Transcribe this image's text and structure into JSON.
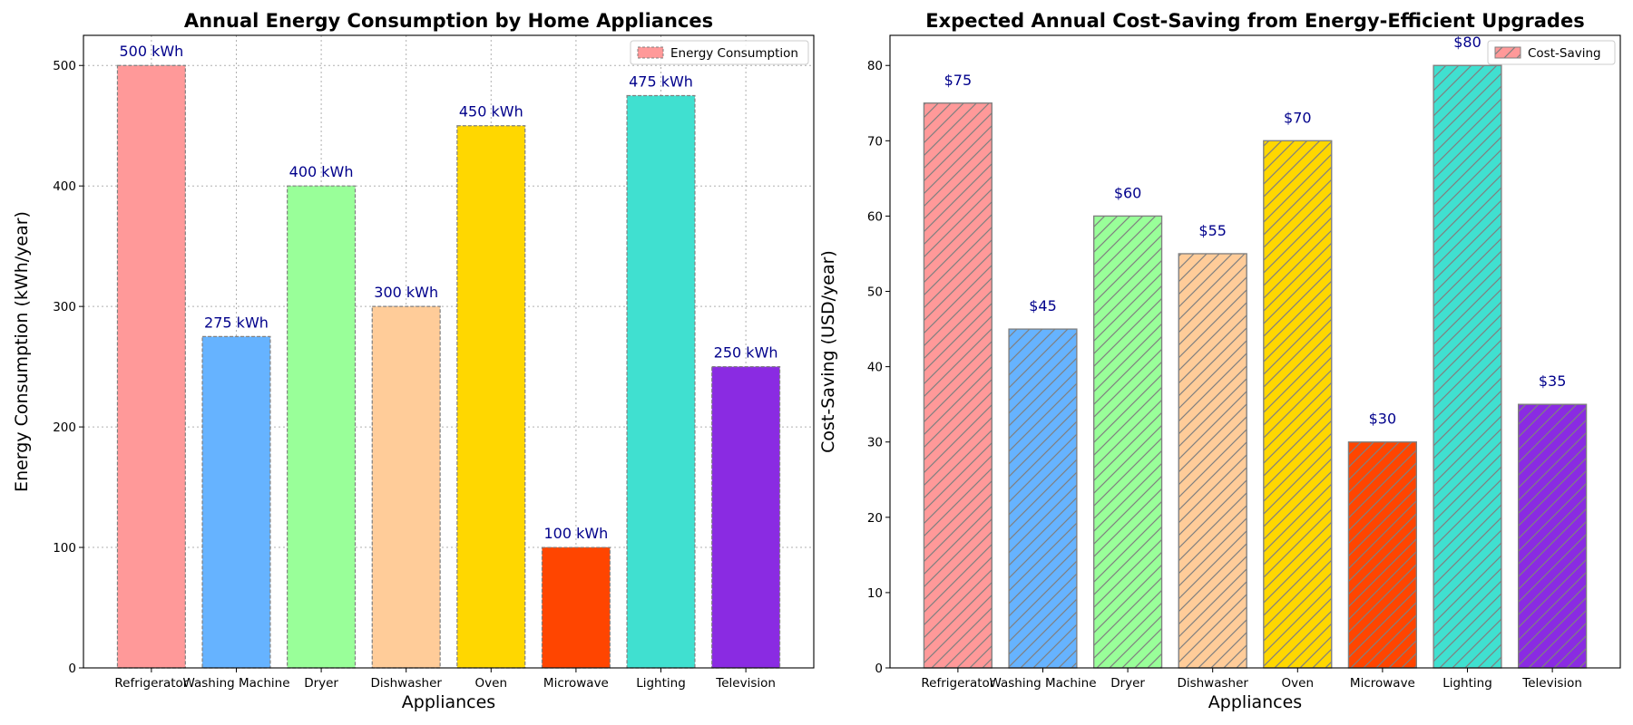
{
  "chart_data": [
    {
      "type": "bar",
      "title": "Annual Energy Consumption by Home Appliances",
      "xlabel": "Appliances",
      "ylabel": "Energy Consumption (kWh/year)",
      "categories": [
        "Refrigerator",
        "Washing Machine",
        "Dryer",
        "Dishwasher",
        "Oven",
        "Microwave",
        "Lighting",
        "Television"
      ],
      "series": [
        {
          "name": "Energy Consumption",
          "values": [
            500,
            275,
            400,
            300,
            450,
            100,
            475,
            250
          ],
          "labels": [
            "500 kWh",
            "275 kWh",
            "400 kWh",
            "300 kWh",
            "450 kWh",
            "100 kWh",
            "475 kWh",
            "250 kWh"
          ]
        }
      ],
      "colors": [
        "#ff9999",
        "#66b3ff",
        "#99ff99",
        "#ffcc99",
        "#ffd700",
        "#ff4500",
        "#40e0d0",
        "#8a2be2"
      ],
      "yticks": [
        0,
        100,
        200,
        300,
        400,
        500
      ],
      "ylim": [
        0,
        525
      ],
      "grid": true,
      "bar_edge": "dashed",
      "hatch": "none",
      "legend_position": "top-right"
    },
    {
      "type": "bar",
      "title": "Expected Annual Cost-Saving from Energy-Efficient Upgrades",
      "xlabel": "Appliances",
      "ylabel": "Cost-Saving (USD/year)",
      "categories": [
        "Refrigerator",
        "Washing Machine",
        "Dryer",
        "Dishwasher",
        "Oven",
        "Microwave",
        "Lighting",
        "Television"
      ],
      "series": [
        {
          "name": "Cost-Saving",
          "values": [
            75,
            45,
            60,
            55,
            70,
            30,
            80,
            35
          ],
          "labels": [
            "$75",
            "$45",
            "$60",
            "$55",
            "$70",
            "$30",
            "$80",
            "$35"
          ]
        }
      ],
      "colors": [
        "#ff9999",
        "#66b3ff",
        "#99ff99",
        "#ffcc99",
        "#ffd700",
        "#ff4500",
        "#40e0d0",
        "#8a2be2"
      ],
      "yticks": [
        0,
        10,
        20,
        30,
        40,
        50,
        60,
        70,
        80
      ],
      "ylim": [
        0,
        84
      ],
      "grid": false,
      "bar_edge": "solid",
      "hatch": "diagonal",
      "legend_position": "top-right"
    }
  ]
}
